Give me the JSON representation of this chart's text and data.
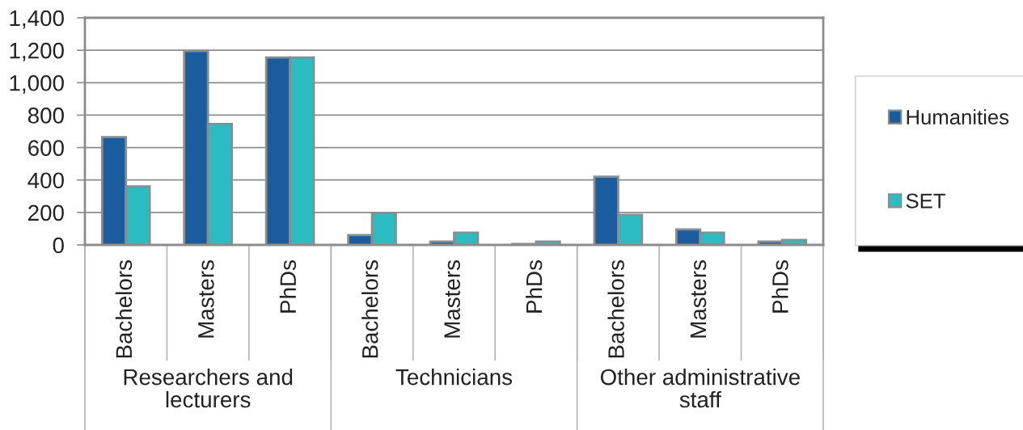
{
  "chart_data": {
    "type": "bar",
    "categories": [
      "Bachelors",
      "Masters",
      "PhDs",
      "Bachelors",
      "Masters",
      "PhDs",
      "Bachelors",
      "Masters",
      "PhDs"
    ],
    "series": [
      {
        "name": "Humanities",
        "color": "#1a5c9e",
        "values": [
          665,
          1195,
          1155,
          60,
          20,
          5,
          420,
          95,
          20
        ]
      },
      {
        "name": "SET",
        "color": "#2bbcc2",
        "values": [
          360,
          745,
          1155,
          195,
          75,
          20,
          185,
          75,
          30
        ]
      }
    ],
    "ylim": [
      0,
      1400
    ],
    "yticks": [
      0,
      200,
      400,
      600,
      800,
      {
        "value": 1000,
        "label": "1,000"
      },
      {
        "value": 1200,
        "label": "1,200"
      },
      {
        "value": 1400,
        "label": "1,400"
      }
    ],
    "grid": "y",
    "legend": "right",
    "annotations": [
      "Researchers and lecturers",
      "Technicians",
      "Other administrative staff"
    ]
  }
}
